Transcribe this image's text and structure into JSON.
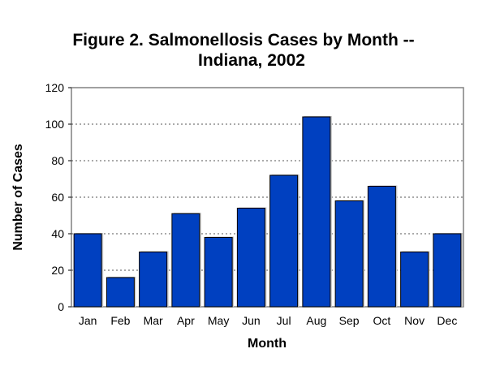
{
  "chart_data": {
    "type": "bar",
    "title_line1": "Figure 2.  Salmonellosis Cases by Month --",
    "title_line2": "Indiana, 2002",
    "xlabel": "Month",
    "ylabel": "Number of Cases",
    "ylim": [
      0,
      120
    ],
    "yticks": [
      0,
      20,
      40,
      60,
      80,
      100,
      120
    ],
    "grid": true,
    "categories": [
      "Jan",
      "Feb",
      "Mar",
      "Apr",
      "May",
      "Jun",
      "Jul",
      "Aug",
      "Sep",
      "Oct",
      "Nov",
      "Dec"
    ],
    "values": [
      40,
      16,
      30,
      51,
      38,
      54,
      72,
      104,
      58,
      66,
      30,
      40
    ],
    "bar_color": "#0040C0"
  }
}
